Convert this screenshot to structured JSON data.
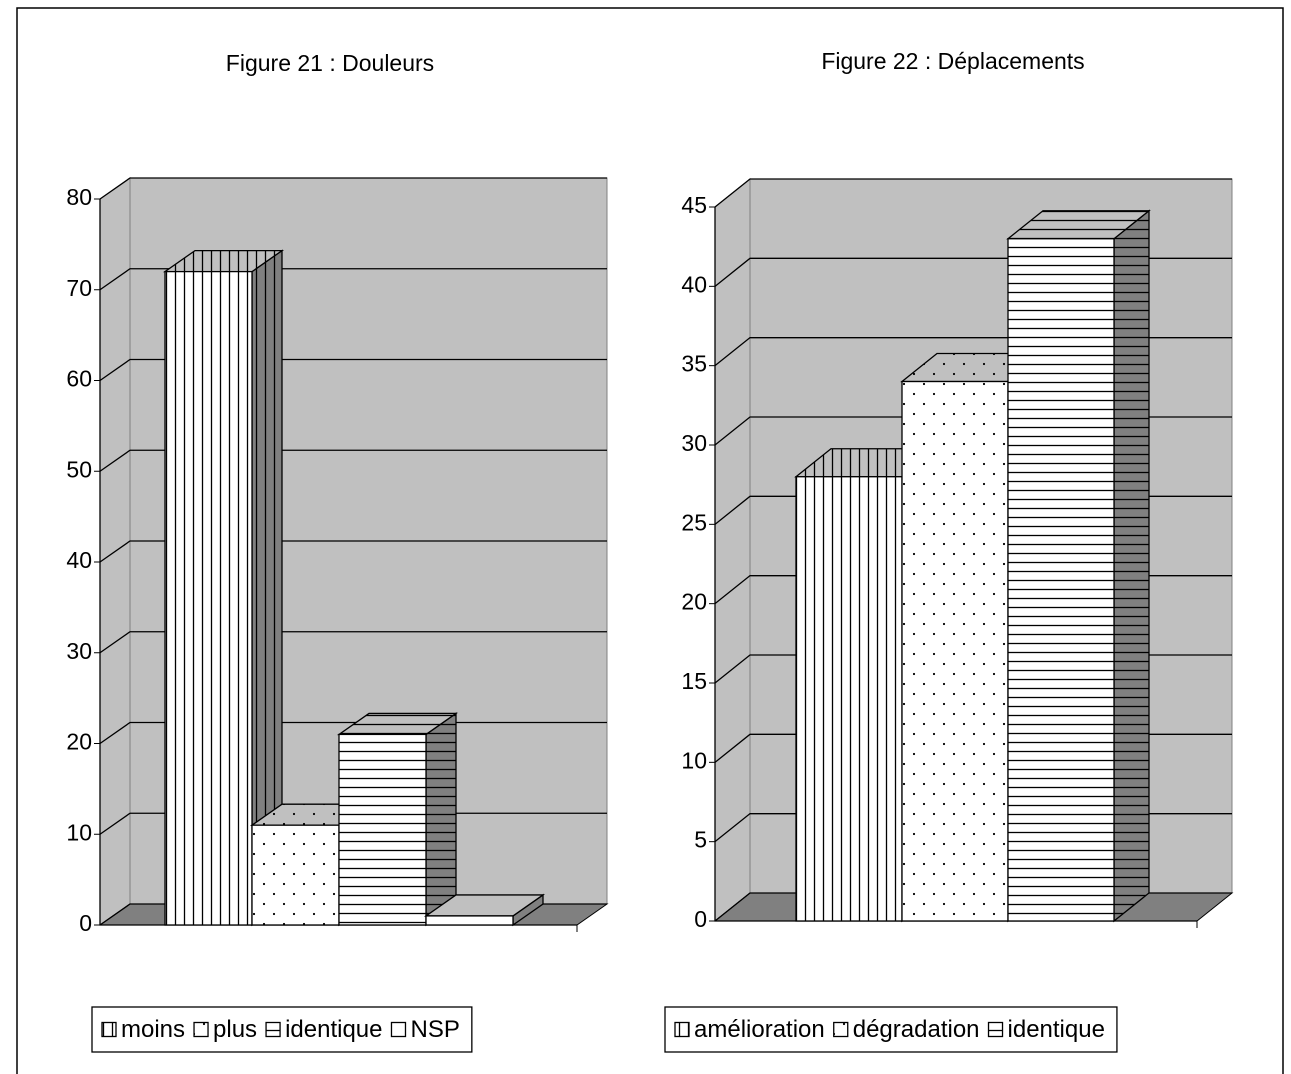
{
  "chart_data": [
    {
      "type": "bar",
      "title": "Figure 21 : Douleurs",
      "series": [
        {
          "name": "moins",
          "color": "#ffffff",
          "pattern": "vertical",
          "values": [
            72
          ]
        },
        {
          "name": "plus",
          "color": "#ffffff",
          "pattern": "dots",
          "values": [
            11
          ]
        },
        {
          "name": "identique",
          "color": "#ffffff",
          "pattern": "horizontal",
          "values": [
            21
          ]
        },
        {
          "name": "NSP",
          "color": "#ffffff",
          "pattern": "none",
          "values": [
            1
          ]
        }
      ],
      "ylim": [
        0,
        80
      ],
      "yticks": [
        0,
        10,
        20,
        30,
        40,
        50,
        60,
        70,
        80
      ],
      "grid": true,
      "legend": "bottom"
    },
    {
      "type": "bar",
      "title": "Figure 22 : Déplacements",
      "series": [
        {
          "name": "amélioration",
          "color": "#ffffff",
          "pattern": "vertical",
          "values": [
            28
          ]
        },
        {
          "name": "dégradation",
          "color": "#ffffff",
          "pattern": "dots",
          "values": [
            34
          ]
        },
        {
          "name": "identique",
          "color": "#ffffff",
          "pattern": "horizontal",
          "values": [
            43
          ]
        }
      ],
      "ylim": [
        0,
        45
      ],
      "yticks": [
        0,
        5,
        10,
        15,
        20,
        25,
        30,
        35,
        40,
        45
      ],
      "grid": true,
      "legend": "bottom"
    }
  ]
}
